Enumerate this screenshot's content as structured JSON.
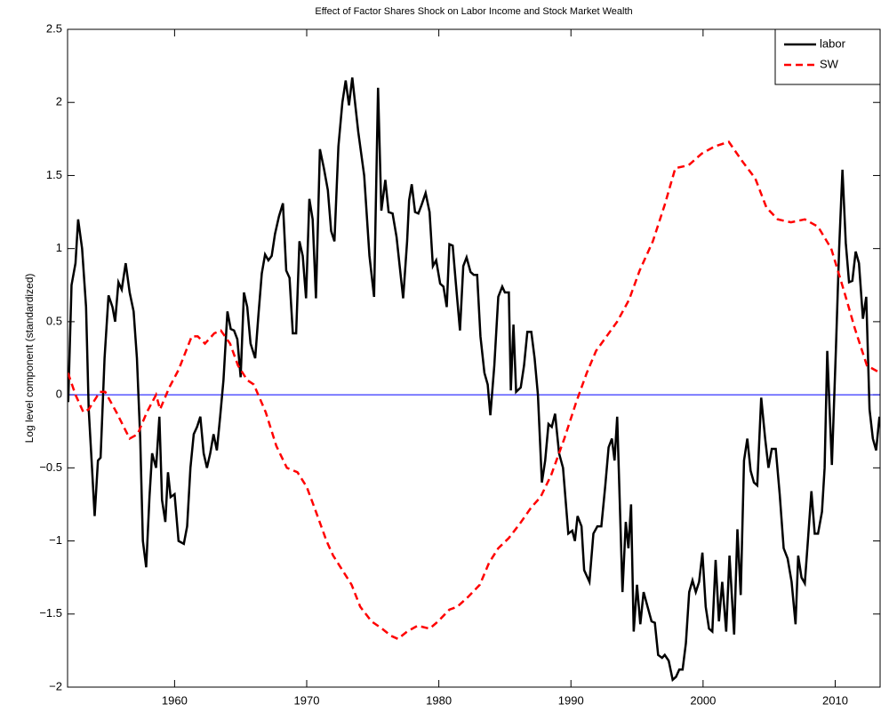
{
  "chart_data": {
    "type": "line",
    "title": "Effect of Factor Shares Shock on Labor Income and Stock Market Wealth",
    "y_label": "Log level component (standardized)",
    "xlim": [
      1951.9,
      2013.4
    ],
    "ylim": [
      -2,
      2.5
    ],
    "xticks": [
      1960,
      1970,
      1980,
      1990,
      2000,
      2010
    ],
    "yticks": [
      {
        "value": -2,
        "label": "−2"
      },
      {
        "value": -1.5,
        "label": "−1.5"
      },
      {
        "value": -1,
        "label": "−1"
      },
      {
        "value": -0.5,
        "label": "−0.5"
      },
      0,
      0.5,
      1,
      1.5,
      2,
      2.5
    ],
    "grid": false,
    "legend": "northeast",
    "hline": {
      "value": 0,
      "color": "#0000ff"
    },
    "series": [
      {
        "name": "labor",
        "color": "#000000",
        "dash": false,
        "x": [
          1951.95,
          1952.2,
          1952.5,
          1952.7,
          1953.0,
          1953.3,
          1953.5,
          1953.75,
          1953.95,
          1954.2,
          1954.4,
          1954.7,
          1955.0,
          1955.3,
          1955.5,
          1955.75,
          1956.0,
          1956.3,
          1956.6,
          1956.9,
          1957.15,
          1957.4,
          1957.6,
          1957.85,
          1958.1,
          1958.3,
          1958.6,
          1958.85,
          1959.05,
          1959.3,
          1959.5,
          1959.7,
          1960.0,
          1960.3,
          1960.7,
          1960.95,
          1961.2,
          1961.45,
          1961.7,
          1961.95,
          1962.2,
          1962.45,
          1962.7,
          1962.95,
          1963.2,
          1963.45,
          1963.7,
          1964.0,
          1964.25,
          1964.5,
          1964.75,
          1965.0,
          1965.25,
          1965.5,
          1965.75,
          1966.1,
          1966.35,
          1966.6,
          1966.85,
          1967.1,
          1967.35,
          1967.6,
          1967.9,
          1968.2,
          1968.45,
          1968.7,
          1968.95,
          1969.2,
          1969.45,
          1969.7,
          1969.95,
          1970.2,
          1970.45,
          1970.7,
          1971.0,
          1971.3,
          1971.6,
          1971.85,
          1972.1,
          1972.4,
          1972.7,
          1972.95,
          1973.2,
          1973.45,
          1973.9,
          1974.35,
          1974.75,
          1975.1,
          1975.4,
          1975.65,
          1975.95,
          1976.2,
          1976.5,
          1976.8,
          1977.3,
          1977.6,
          1977.75,
          1977.95,
          1978.2,
          1978.45,
          1978.7,
          1979.0,
          1979.3,
          1979.55,
          1979.8,
          1980.1,
          1980.35,
          1980.6,
          1980.8,
          1981.05,
          1981.3,
          1981.6,
          1981.85,
          1982.1,
          1982.4,
          1982.65,
          1982.9,
          1983.15,
          1983.45,
          1983.7,
          1983.9,
          1984.2,
          1984.5,
          1984.8,
          1985.0,
          1985.3,
          1985.45,
          1985.65,
          1985.85,
          1986.2,
          1986.45,
          1986.7,
          1987.0,
          1987.25,
          1987.5,
          1987.8,
          1988.05,
          1988.3,
          1988.55,
          1988.8,
          1989.1,
          1989.4,
          1989.8,
          1990.1,
          1990.3,
          1990.5,
          1990.8,
          1991.0,
          1991.4,
          1991.7,
          1992.0,
          1992.3,
          1992.6,
          1992.85,
          1993.1,
          1993.3,
          1993.5,
          1993.9,
          1994.15,
          1994.35,
          1994.55,
          1994.75,
          1995.0,
          1995.25,
          1995.5,
          1995.8,
          1996.1,
          1996.35,
          1996.6,
          1996.9,
          1997.1,
          1997.4,
          1997.7,
          1997.95,
          1998.2,
          1998.45,
          1998.7,
          1998.95,
          1999.2,
          1999.45,
          1999.7,
          1999.95,
          2000.2,
          2000.45,
          2000.7,
          2000.95,
          2001.2,
          2001.45,
          2001.75,
          2002.0,
          2002.35,
          2002.6,
          2002.85,
          2003.1,
          2003.35,
          2003.6,
          2003.85,
          2004.1,
          2004.4,
          2004.7,
          2004.95,
          2005.2,
          2005.5,
          2005.8,
          2006.1,
          2006.4,
          2006.7,
          2007.0,
          2007.2,
          2007.45,
          2007.7,
          2007.95,
          2008.2,
          2008.45,
          2008.7,
          2009.0,
          2009.2,
          2009.4,
          2009.75,
          2010.05,
          2010.3,
          2010.55,
          2010.8,
          2011.05,
          2011.3,
          2011.55,
          2011.8,
          2012.1,
          2012.35,
          2012.6,
          2012.85,
          2013.1,
          2013.35
        ],
        "values": [
          -0.05,
          0.75,
          0.9,
          1.2,
          1.0,
          0.6,
          -0.1,
          -0.5,
          -0.83,
          -0.45,
          -0.43,
          0.25,
          0.68,
          0.6,
          0.5,
          0.77,
          0.72,
          0.9,
          0.7,
          0.57,
          0.25,
          -0.3,
          -1.0,
          -1.18,
          -0.7,
          -0.4,
          -0.5,
          -0.15,
          -0.72,
          -0.87,
          -0.53,
          -0.7,
          -0.68,
          -1.0,
          -1.02,
          -0.9,
          -0.5,
          -0.27,
          -0.22,
          -0.15,
          -0.4,
          -0.5,
          -0.4,
          -0.27,
          -0.38,
          -0.15,
          0.1,
          0.57,
          0.45,
          0.44,
          0.38,
          0.12,
          0.7,
          0.6,
          0.35,
          0.25,
          0.55,
          0.83,
          0.96,
          0.92,
          0.95,
          1.1,
          1.22,
          1.31,
          0.85,
          0.8,
          0.42,
          0.42,
          1.05,
          0.95,
          0.66,
          1.34,
          1.2,
          0.66,
          1.68,
          1.55,
          1.4,
          1.12,
          1.05,
          1.7,
          2.0,
          2.15,
          1.98,
          2.17,
          1.8,
          1.5,
          0.95,
          0.67,
          2.1,
          1.26,
          1.47,
          1.25,
          1.24,
          1.08,
          0.66,
          1.05,
          1.33,
          1.44,
          1.25,
          1.24,
          1.3,
          1.38,
          1.25,
          0.88,
          0.92,
          0.76,
          0.74,
          0.6,
          1.03,
          1.02,
          0.75,
          0.44,
          0.88,
          0.94,
          0.84,
          0.82,
          0.82,
          0.4,
          0.15,
          0.07,
          -0.14,
          0.2,
          0.67,
          0.74,
          0.7,
          0.7,
          0.03,
          0.48,
          0.02,
          0.05,
          0.2,
          0.43,
          0.43,
          0.25,
          0.0,
          -0.6,
          -0.45,
          -0.2,
          -0.22,
          -0.13,
          -0.4,
          -0.5,
          -0.95,
          -0.93,
          -1.0,
          -0.83,
          -0.9,
          -1.2,
          -1.28,
          -0.95,
          -0.9,
          -0.9,
          -0.62,
          -0.36,
          -0.3,
          -0.45,
          -0.15,
          -1.35,
          -0.87,
          -1.05,
          -0.75,
          -1.62,
          -1.3,
          -1.57,
          -1.35,
          -1.45,
          -1.55,
          -1.56,
          -1.78,
          -1.8,
          -1.78,
          -1.82,
          -1.95,
          -1.93,
          -1.88,
          -1.88,
          -1.7,
          -1.35,
          -1.27,
          -1.35,
          -1.28,
          -1.08,
          -1.45,
          -1.6,
          -1.62,
          -1.13,
          -1.55,
          -1.28,
          -1.62,
          -1.1,
          -1.64,
          -0.92,
          -1.37,
          -0.45,
          -0.3,
          -0.52,
          -0.6,
          -0.62,
          -0.02,
          -0.3,
          -0.5,
          -0.37,
          -0.37,
          -0.68,
          -1.05,
          -1.12,
          -1.28,
          -1.57,
          -1.1,
          -1.25,
          -1.29,
          -0.98,
          -0.66,
          -0.95,
          -0.95,
          -0.8,
          -0.5,
          0.3,
          -0.48,
          0.3,
          1.0,
          1.54,
          1.04,
          0.77,
          0.78,
          0.98,
          0.9,
          0.52,
          0.67,
          -0.1,
          -0.3,
          -0.38,
          -0.15
        ]
      },
      {
        "name": "SW",
        "color": "#ff0000",
        "dash": true,
        "x": [
          1951.93,
          1952.5,
          1953.1,
          1953.5,
          1954.35,
          1954.75,
          1955.6,
          1956.6,
          1957.2,
          1957.9,
          1958.6,
          1958.9,
          1959.6,
          1960.3,
          1961.3,
          1961.75,
          1962.3,
          1963.0,
          1963.5,
          1964.2,
          1964.8,
          1965.5,
          1966.0,
          1966.9,
          1967.7,
          1968.5,
          1969.3,
          1970.0,
          1970.7,
          1971.5,
          1972.0,
          1972.7,
          1973.4,
          1974.05,
          1974.9,
          1975.7,
          1976.4,
          1976.9,
          1977.6,
          1978.4,
          1979.3,
          1979.95,
          1980.8,
          1981.4,
          1982.25,
          1983.1,
          1983.8,
          1984.5,
          1985.3,
          1986.15,
          1987.0,
          1987.7,
          1988.5,
          1989.5,
          1990.4,
          1991.2,
          1991.9,
          1992.7,
          1993.5,
          1994.4,
          1995.2,
          1996.2,
          1997.1,
          1997.9,
          1998.9,
          1999.9,
          2000.9,
          2001.95,
          2002.95,
          2003.95,
          2004.8,
          2005.65,
          2006.65,
          2007.7,
          2008.7,
          2009.7,
          2010.7,
          2011.5,
          2012.4,
          2013.4
        ],
        "values": [
          0.15,
          0.0,
          -0.12,
          -0.1,
          0.02,
          0.02,
          -0.12,
          -0.3,
          -0.27,
          -0.12,
          0.0,
          -0.1,
          0.05,
          0.17,
          0.4,
          0.4,
          0.35,
          0.42,
          0.44,
          0.35,
          0.2,
          0.1,
          0.07,
          -0.12,
          -0.35,
          -0.5,
          -0.53,
          -0.63,
          -0.8,
          -1.0,
          -1.1,
          -1.2,
          -1.3,
          -1.45,
          -1.55,
          -1.6,
          -1.65,
          -1.67,
          -1.62,
          -1.58,
          -1.6,
          -1.55,
          -1.47,
          -1.45,
          -1.38,
          -1.3,
          -1.15,
          -1.05,
          -0.98,
          -0.88,
          -0.77,
          -0.7,
          -0.55,
          -0.3,
          -0.05,
          0.15,
          0.3,
          0.4,
          0.5,
          0.65,
          0.85,
          1.05,
          1.3,
          1.55,
          1.57,
          1.65,
          1.7,
          1.73,
          1.6,
          1.48,
          1.28,
          1.2,
          1.18,
          1.2,
          1.15,
          1.0,
          0.7,
          0.45,
          0.2,
          0.15
        ]
      }
    ]
  }
}
